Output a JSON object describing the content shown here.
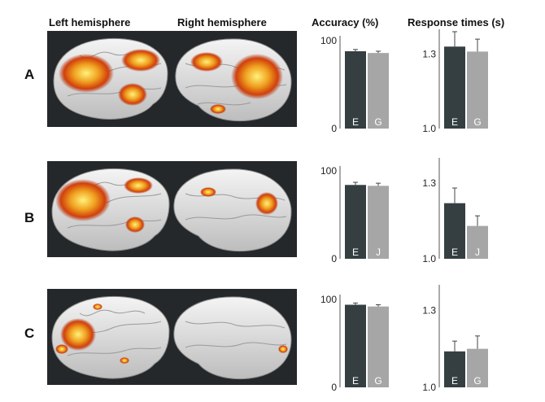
{
  "headers": {
    "left_hemisphere": "Left hemisphere",
    "right_hemisphere": "Right hemisphere",
    "accuracy": "Accuracy (%)",
    "response_times": "Response times (s)"
  },
  "rows": [
    {
      "label": "A"
    },
    {
      "label": "B"
    },
    {
      "label": "C"
    }
  ],
  "colors": {
    "bar_dark": "#353f41",
    "bar_light": "#a6a6a6",
    "panel_bg": "#24282a",
    "activation": "#e05a10"
  },
  "chart_data": [
    {
      "type": "bar",
      "panel": "A",
      "measure": "accuracy",
      "categories": [
        "E",
        "G"
      ],
      "values": [
        88,
        86
      ],
      "errors": [
        2,
        2
      ],
      "yticks": [
        "0",
        "100"
      ],
      "ylim": [
        0,
        100
      ]
    },
    {
      "type": "bar",
      "panel": "A",
      "measure": "response_times",
      "categories": [
        "E",
        "G"
      ],
      "values": [
        1.33,
        1.31
      ],
      "errors": [
        0.06,
        0.05
      ],
      "yticks": [
        "1.0",
        "1.3"
      ],
      "ylim": [
        1.0,
        1.38
      ]
    },
    {
      "type": "bar",
      "panel": "B",
      "measure": "accuracy",
      "categories": [
        "E",
        "J"
      ],
      "values": [
        84,
        83
      ],
      "errors": [
        3,
        3
      ],
      "yticks": [
        "0",
        "100"
      ],
      "ylim": [
        0,
        100
      ]
    },
    {
      "type": "bar",
      "panel": "B",
      "measure": "response_times",
      "categories": [
        "E",
        "J"
      ],
      "values": [
        1.22,
        1.13
      ],
      "errors": [
        0.06,
        0.04
      ],
      "yticks": [
        "1.0",
        "1.3"
      ],
      "ylim": [
        1.0,
        1.38
      ]
    },
    {
      "type": "bar",
      "panel": "C",
      "measure": "accuracy",
      "categories": [
        "E",
        "G"
      ],
      "values": [
        94,
        92
      ],
      "errors": [
        2,
        2
      ],
      "yticks": [
        "0",
        "100"
      ],
      "ylim": [
        0,
        100
      ]
    },
    {
      "type": "bar",
      "panel": "C",
      "measure": "response_times",
      "categories": [
        "E",
        "G"
      ],
      "values": [
        1.14,
        1.15
      ],
      "errors": [
        0.04,
        0.05
      ],
      "yticks": [
        "1.0",
        "1.3"
      ],
      "ylim": [
        1.0,
        1.38
      ]
    }
  ]
}
